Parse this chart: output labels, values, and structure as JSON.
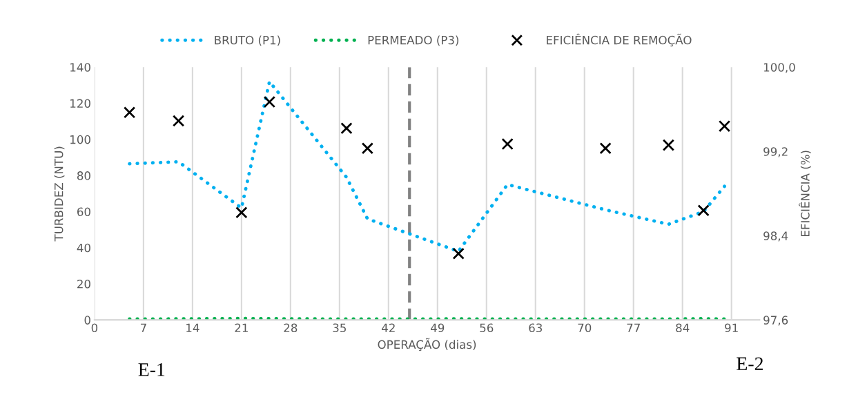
{
  "chart_data": {
    "type": "line",
    "xlabel": "OPERAÇÃO (dias)",
    "ylabel": "TURBIDEZ (NTU)",
    "y2label": "EFICIÊNCIA (%)",
    "xlim": [
      0,
      95
    ],
    "xticks": [
      0,
      7,
      14,
      21,
      28,
      35,
      42,
      49,
      56,
      63,
      70,
      77,
      84,
      91
    ],
    "ylim": [
      0,
      140
    ],
    "yticks": [
      0,
      20,
      40,
      60,
      80,
      100,
      120,
      140
    ],
    "y2lim": [
      97.6,
      100.0
    ],
    "y2ticks": [
      {
        "value": 97.6,
        "label": "97,6"
      },
      {
        "value": 98.4,
        "label": "98,4"
      },
      {
        "value": 99.2,
        "label": "99,2"
      },
      {
        "value": 100.0,
        "label": "100,0"
      }
    ],
    "grid": "x",
    "legend": "top",
    "series": [
      {
        "name": "BRUTO (P1)",
        "color": "#00b0f0",
        "line_style": "dotted",
        "marker": "none",
        "x": [
          5,
          12,
          21,
          25,
          36,
          39,
          52,
          59,
          73,
          82,
          87,
          90
        ],
        "values": [
          86.5,
          87.6,
          62,
          132,
          79,
          56,
          38,
          75,
          61,
          53,
          60,
          74
        ]
      },
      {
        "name": "PERMEADO (P3)",
        "color": "#00b050",
        "line_style": "dotted",
        "marker": "none",
        "x": [
          5,
          12,
          21,
          25,
          36,
          39,
          52,
          59,
          73,
          82,
          87,
          90
        ],
        "values": [
          0.5,
          0.6,
          0.8,
          0.7,
          0.5,
          0.5,
          0.6,
          0.5,
          0.5,
          0.5,
          0.7,
          0.5
        ]
      },
      {
        "name": "EFICIÊNCIA DE REMOÇÃO",
        "type": "scatter",
        "axis": "y2",
        "color": "#000000",
        "marker": "cross",
        "x": [
          5,
          12,
          21,
          25,
          36,
          39,
          52,
          59,
          73,
          82,
          87,
          90
        ],
        "values": [
          99.57,
          99.49,
          98.62,
          99.67,
          99.42,
          99.23,
          98.23,
          99.27,
          99.23,
          99.26,
          98.64,
          99.44
        ]
      }
    ],
    "ref_lines": [
      {
        "axis": "x",
        "value": 45,
        "color": "#808080",
        "line_style": "dashed"
      }
    ],
    "annotations": [
      "E-1",
      "E-2"
    ]
  }
}
